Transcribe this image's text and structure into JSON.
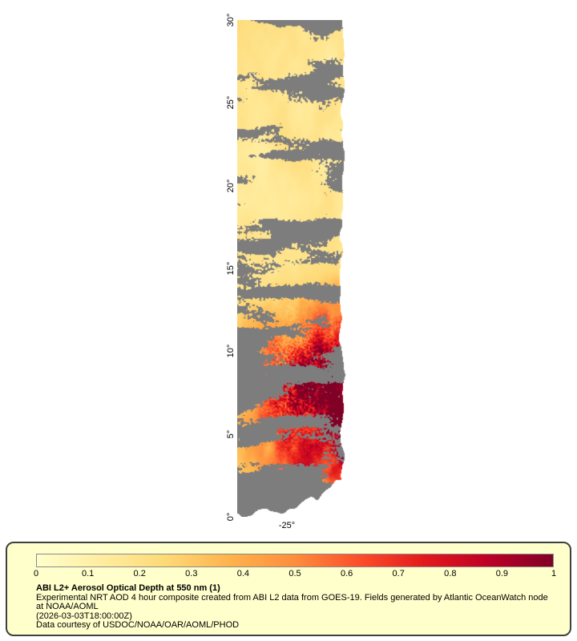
{
  "figure": {
    "background_color": "#ffffff"
  },
  "map": {
    "lat_tick_labels": [
      "30°",
      "25°",
      "20°",
      "15°",
      "10°",
      "5°",
      "0°"
    ],
    "lon_tick_label": "-25°",
    "no_data_color": "#7d7d7d"
  },
  "colorbar": {
    "min": 0,
    "max": 1,
    "tick_labels": [
      "0",
      "0.1",
      "0.2",
      "0.3",
      "0.4",
      "0.5",
      "0.6",
      "0.7",
      "0.8",
      "0.9",
      "1"
    ],
    "colormap_stops": [
      "#ffffcc",
      "#ffeda0",
      "#fed976",
      "#feb24c",
      "#fd8d3c",
      "#fc4e2a",
      "#e31a1c",
      "#bd0026",
      "#800026"
    ]
  },
  "legend": {
    "title": "ABI L2+ Aerosol Optical Depth at 550 nm (1)",
    "description": "Experimental NRT AOD 4 hour composite created from ABI L2 data from GOES-19. Fields generated by Atlantic OceanWatch node at NOAA/AOML",
    "timestamp": "(2026-03-03T18:00:00Z)",
    "credit": "Data courtesy of USDOC/NOAA/OAR/AOML/PHOD",
    "background_color": "#ffffcc",
    "border_color": "#3f3f3f"
  }
}
